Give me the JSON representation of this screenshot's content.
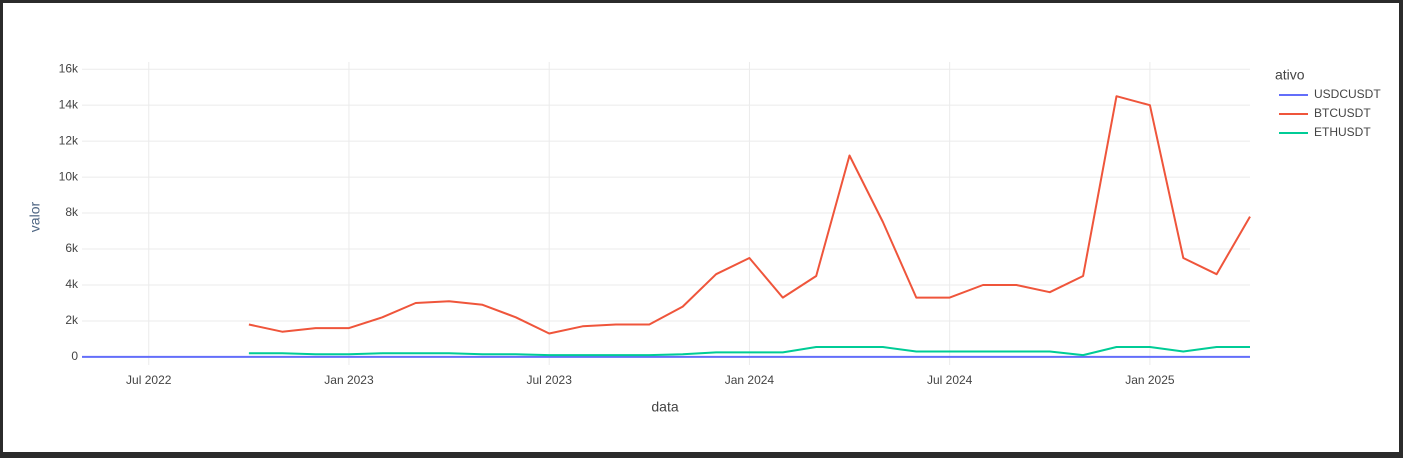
{
  "chart_data": {
    "type": "line",
    "x_label": "data",
    "y_label": "valor",
    "legend_title": "ativo",
    "legend": "right",
    "grid": true,
    "x": [
      "2022-05",
      "2022-06",
      "2022-07",
      "2022-08",
      "2022-09",
      "2022-10",
      "2022-11",
      "2022-12",
      "2023-01",
      "2023-02",
      "2023-03",
      "2023-04",
      "2023-05",
      "2023-06",
      "2023-07",
      "2023-08",
      "2023-09",
      "2023-10",
      "2023-11",
      "2023-12",
      "2024-01",
      "2024-02",
      "2024-03",
      "2024-04",
      "2024-05",
      "2024-06",
      "2024-07",
      "2024-08",
      "2024-09",
      "2024-10",
      "2024-11",
      "2024-12",
      "2025-01",
      "2025-02",
      "2025-03",
      "2025-04"
    ],
    "series": [
      {
        "name": "USDCUSDT",
        "color": "#636efa",
        "values": [
          1,
          1,
          1,
          1,
          1,
          1,
          1,
          1,
          1,
          1,
          1,
          1,
          1,
          1,
          1,
          1,
          1,
          1,
          1,
          1,
          1,
          1,
          1,
          1,
          1,
          1,
          1,
          1,
          1,
          1,
          1,
          1,
          1,
          1,
          1,
          1
        ]
      },
      {
        "name": "BTCUSDT",
        "color": "#EF553B",
        "values": [
          null,
          null,
          null,
          null,
          null,
          1800,
          1400,
          1600,
          1600,
          2200,
          3000,
          3100,
          2900,
          2200,
          1300,
          1700,
          1800,
          1800,
          2800,
          4600,
          5500,
          3300,
          4500,
          11200,
          7500,
          3300,
          3300,
          4000,
          4000,
          3600,
          4500,
          14500,
          14000,
          5500,
          4600,
          7800
        ]
      },
      {
        "name": "ETHUSDT",
        "color": "#00cc96",
        "values": [
          null,
          null,
          null,
          null,
          null,
          200,
          200,
          150,
          150,
          200,
          200,
          200,
          150,
          150,
          100,
          100,
          100,
          100,
          150,
          250,
          250,
          250,
          550,
          550,
          550,
          300,
          300,
          300,
          300,
          300,
          100,
          550,
          550,
          300,
          550,
          550
        ]
      }
    ],
    "xlim": [
      "2022-05",
      "2025-04"
    ],
    "xticks": [
      {
        "value": "2022-07",
        "label": "Jul 2022"
      },
      {
        "value": "2023-01",
        "label": "Jan 2023"
      },
      {
        "value": "2023-07",
        "label": "Jul 2023"
      },
      {
        "value": "2024-01",
        "label": "Jan 2024"
      },
      {
        "value": "2024-07",
        "label": "Jul 2024"
      },
      {
        "value": "2025-01",
        "label": "Jan 2025"
      }
    ],
    "ylim": [
      -450,
      16400
    ],
    "yticks": [
      0,
      {
        "value": 2000,
        "label": "2k"
      },
      {
        "value": 4000,
        "label": "4k"
      },
      {
        "value": 6000,
        "label": "6k"
      },
      {
        "value": 8000,
        "label": "8k"
      },
      {
        "value": 10000,
        "label": "10k"
      },
      {
        "value": 12000,
        "label": "12k"
      },
      {
        "value": 14000,
        "label": "14k"
      },
      {
        "value": 16000,
        "label": "16k"
      }
    ]
  }
}
